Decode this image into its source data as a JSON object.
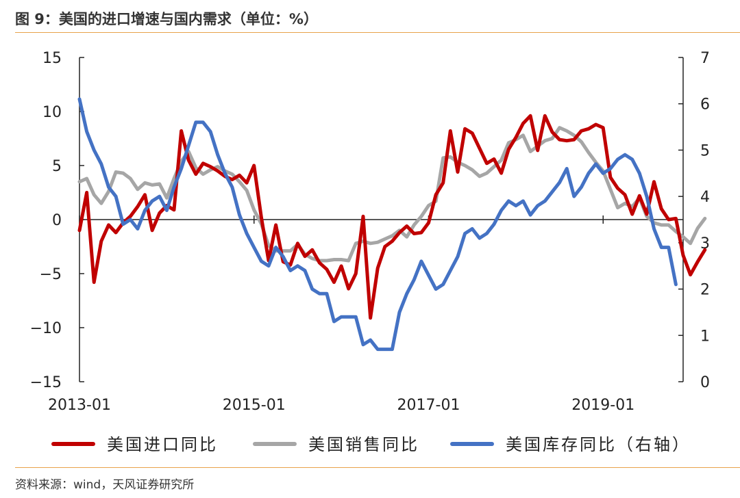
{
  "header": {
    "title": "图 9：美国的进口增速与国内需求（单位：%）"
  },
  "footer": {
    "source": "资料来源：wind，天风证券研究所"
  },
  "colors": {
    "accent_rule": "#e8a24a",
    "imports": "#c00000",
    "retail": "#a6a6a6",
    "inventory": "#4472c4"
  },
  "chart_data": {
    "type": "line",
    "x_start": "2013-01",
    "x_tick_labels": [
      "2013-01",
      "2015-01",
      "2017-01",
      "2019-01"
    ],
    "y_left": {
      "ylim": [
        -15,
        15
      ],
      "ticks": [
        "15",
        "10",
        "5",
        "0",
        "−5",
        "−10",
        "−15"
      ]
    },
    "y_right": {
      "ylim": [
        0,
        7
      ],
      "ticks": [
        "7",
        "6",
        "5",
        "4",
        "3",
        "2",
        "1",
        "0"
      ]
    },
    "legend_position": "bottom",
    "series": [
      {
        "name": "美国进口同比",
        "axis": "left",
        "color": "#c00000",
        "values": [
          -1,
          2.5,
          -5.8,
          -2,
          -0.5,
          -1.2,
          -0.3,
          0.3,
          1.2,
          2.3,
          -1,
          0.6,
          1.3,
          0.9,
          8.2,
          5.5,
          4.2,
          5.2,
          4.9,
          4.5,
          4,
          3.7,
          4.1,
          3.4,
          5,
          0.2,
          -3.8,
          -0.5,
          -3.9,
          -4.2,
          -2.2,
          -3.4,
          -2.8,
          -4,
          -4.6,
          -5.8,
          -4.3,
          -6.4,
          -5,
          0.3,
          -9.1,
          -4.5,
          -2.5,
          -2,
          -1.2,
          -0.6,
          -1.3,
          -1.2,
          -0.3,
          2.3,
          3.4,
          8.2,
          4.4,
          8.4,
          8,
          6.6,
          5.2,
          5.6,
          4.3,
          6.5,
          7.6,
          8.9,
          9.6,
          6.4,
          9.6,
          8.1,
          7.4,
          7.3,
          7.4,
          8.2,
          8.4,
          8.8,
          8.5,
          3.9,
          2.9,
          2.3,
          0.5,
          2.2,
          0.5,
          3.5,
          1,
          0,
          0.1,
          -3.3,
          -5.1,
          -3.9,
          -2.8
        ]
      },
      {
        "name": "美国销售同比",
        "axis": "left",
        "color": "#a6a6a6",
        "values": [
          3.5,
          3.8,
          2.3,
          1.5,
          2.6,
          4.4,
          4.3,
          3.8,
          2.8,
          3.4,
          3.2,
          3.3,
          2,
          3.8,
          5.4,
          6.3,
          4.8,
          4.2,
          4.6,
          4.9,
          4.5,
          4.2,
          3.5,
          2.7,
          0.9,
          -0.4,
          -2.4,
          -2.9,
          -2.9,
          -2.9,
          -2.3,
          -3.2,
          -3.6,
          -3.8,
          -3.8,
          -3.7,
          -3.7,
          -3.8,
          -2.2,
          -2,
          -2.2,
          -2.1,
          -1.8,
          -1.5,
          -1,
          -1.6,
          -0.5,
          0.3,
          1.3,
          1.7,
          5.7,
          5.8,
          5.3,
          5,
          4.6,
          4,
          4.3,
          4.9,
          5.5,
          7.1,
          7.4,
          7.8,
          6.3,
          6.8,
          7.3,
          7.5,
          8.5,
          8.2,
          7.8,
          7.2,
          6.2,
          5.3,
          4.5,
          2.8,
          1.1,
          1.5,
          1.2,
          2,
          0.3,
          -0.3,
          -0.5,
          -0.5,
          -1.1,
          -1.6,
          -2.2,
          -0.8,
          0.1
        ]
      },
      {
        "name": "美国库存同比（右轴）",
        "axis": "right",
        "color": "#4472c4",
        "values": [
          6.1,
          5.4,
          5,
          4.7,
          4.2,
          4,
          3.4,
          3.5,
          3.3,
          3.7,
          3.9,
          4,
          3.7,
          4.2,
          4.6,
          5.1,
          5.6,
          5.6,
          5.4,
          4.9,
          4.5,
          4.2,
          3.6,
          3.2,
          2.9,
          2.6,
          2.5,
          2.9,
          2.7,
          2.4,
          2.5,
          2.4,
          2,
          1.9,
          1.9,
          1.3,
          1.4,
          1.4,
          1.4,
          0.8,
          0.9,
          0.7,
          0.7,
          0.7,
          1.5,
          1.9,
          2.2,
          2.6,
          2.3,
          2,
          2.1,
          2.4,
          2.7,
          3.2,
          3.3,
          3.1,
          3.2,
          3.4,
          3.7,
          3.9,
          3.8,
          3.9,
          3.6,
          3.8,
          3.9,
          4.1,
          4.3,
          4.6,
          4,
          4.2,
          4.5,
          4.7,
          4.5,
          4.6,
          4.8,
          4.9,
          4.8,
          4.5,
          4,
          3.3,
          2.9,
          2.9,
          2.1
        ]
      }
    ]
  }
}
